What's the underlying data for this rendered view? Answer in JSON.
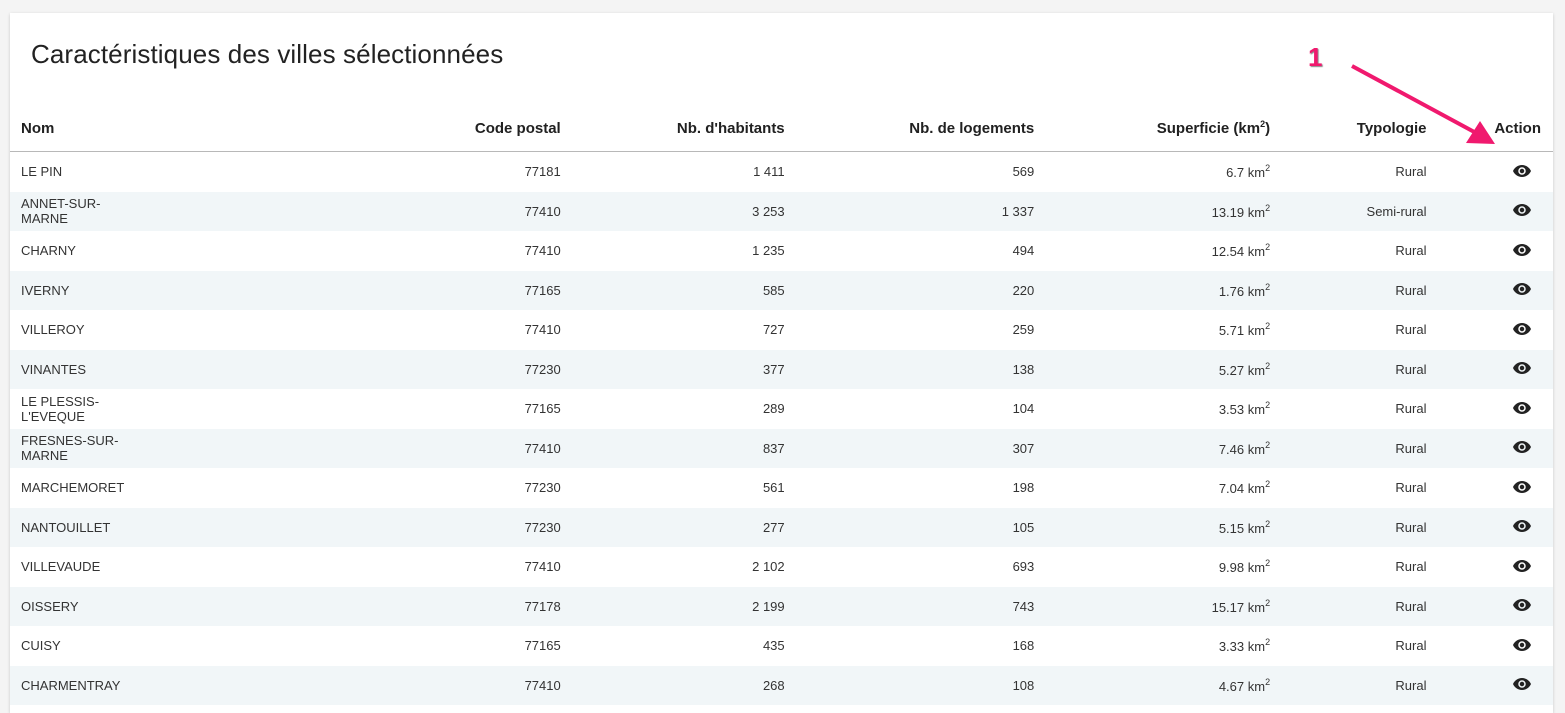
{
  "title": "Caractéristiques des villes sélectionnées",
  "annotation": {
    "label": "1",
    "color": "#f0196e"
  },
  "columns": [
    "Nom",
    "Code postal",
    "Nb. d'habitants",
    "Nb. de logements",
    "Superficie (km",
    "2",
    ")",
    "Typologie",
    "Action"
  ],
  "unit": "km",
  "unit_sup": "2",
  "rows": [
    {
      "nom": "LE PIN",
      "cp": "77181",
      "hab": "1 411",
      "log": "569",
      "sup": "6.7",
      "typ": "Rural"
    },
    {
      "nom": "ANNET-SUR-MARNE",
      "cp": "77410",
      "hab": "3 253",
      "log": "1 337",
      "sup": "13.19",
      "typ": "Semi-rural"
    },
    {
      "nom": "CHARNY",
      "cp": "77410",
      "hab": "1 235",
      "log": "494",
      "sup": "12.54",
      "typ": "Rural"
    },
    {
      "nom": "IVERNY",
      "cp": "77165",
      "hab": "585",
      "log": "220",
      "sup": "1.76",
      "typ": "Rural"
    },
    {
      "nom": "VILLEROY",
      "cp": "77410",
      "hab": "727",
      "log": "259",
      "sup": "5.71",
      "typ": "Rural"
    },
    {
      "nom": "VINANTES",
      "cp": "77230",
      "hab": "377",
      "log": "138",
      "sup": "5.27",
      "typ": "Rural"
    },
    {
      "nom": "LE PLESSIS-L'EVEQUE",
      "cp": "77165",
      "hab": "289",
      "log": "104",
      "sup": "3.53",
      "typ": "Rural"
    },
    {
      "nom": "FRESNES-SUR-MARNE",
      "cp": "77410",
      "hab": "837",
      "log": "307",
      "sup": "7.46",
      "typ": "Rural"
    },
    {
      "nom": "MARCHEMORET",
      "cp": "77230",
      "hab": "561",
      "log": "198",
      "sup": "7.04",
      "typ": "Rural"
    },
    {
      "nom": "NANTOUILLET",
      "cp": "77230",
      "hab": "277",
      "log": "105",
      "sup": "5.15",
      "typ": "Rural"
    },
    {
      "nom": "VILLEVAUDE",
      "cp": "77410",
      "hab": "2 102",
      "log": "693",
      "sup": "9.98",
      "typ": "Rural"
    },
    {
      "nom": "OISSERY",
      "cp": "77178",
      "hab": "2 199",
      "log": "743",
      "sup": "15.17",
      "typ": "Rural"
    },
    {
      "nom": "CUISY",
      "cp": "77165",
      "hab": "435",
      "log": "168",
      "sup": "3.33",
      "typ": "Rural"
    },
    {
      "nom": "CHARMENTRAY",
      "cp": "77410",
      "hab": "268",
      "log": "108",
      "sup": "4.67",
      "typ": "Rural"
    }
  ]
}
